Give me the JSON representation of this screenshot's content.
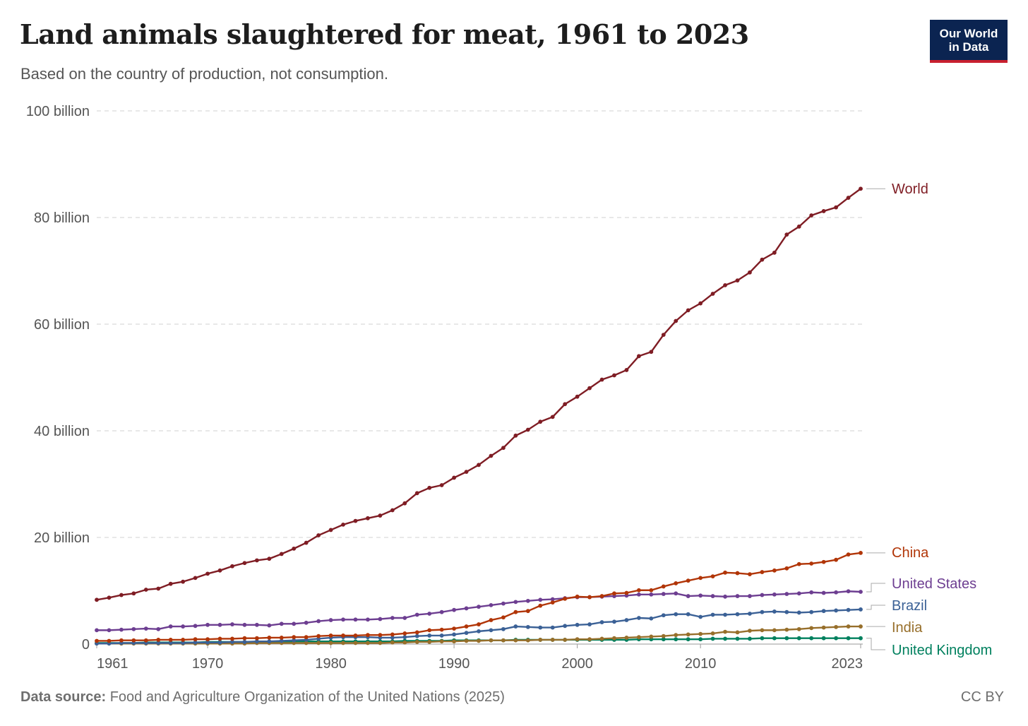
{
  "header": {
    "title": "Land animals slaughtered for meat, 1961 to 2023",
    "subtitle": "Based on the country of production, not consumption.",
    "logo_line1": "Our World",
    "logo_line2": "in Data"
  },
  "footer": {
    "source_label": "Data source:",
    "source_text": "Food and Agriculture Organization of the United Nations (2025)",
    "license": "CC BY"
  },
  "colors": {
    "World": "#7f1d24",
    "China": "#b13507",
    "United States": "#6d3e91",
    "Brazil": "#3b6196",
    "India": "#976f2b",
    "United Kingdom": "#00805e",
    "logo_bg": "#0b2451",
    "logo_accent": "#c8202f"
  },
  "chart_data": {
    "type": "line",
    "title": "Land animals slaughtered for meat, 1961 to 2023",
    "xlabel": "",
    "ylabel": "",
    "xlim": [
      1961,
      2023
    ],
    "ylim": [
      0,
      100
    ],
    "unit": "billion",
    "x_ticks": [
      "1961",
      "1970",
      "1980",
      "1990",
      "2000",
      "2010",
      "2023"
    ],
    "x_tick_values": [
      1961,
      1970,
      1980,
      1990,
      2000,
      2010,
      2023
    ],
    "y_ticks": [
      "0",
      "20 billion",
      "40 billion",
      "60 billion",
      "80 billion",
      "100 billion"
    ],
    "y_tick_values": [
      0,
      20,
      40,
      60,
      80,
      100
    ],
    "grid": "horizontal dashed",
    "legend": "labels at right end of lines",
    "x_start_year": 1961,
    "series": [
      {
        "name": "World",
        "values": [
          8.3,
          8.7,
          9.2,
          9.5,
          10.2,
          10.4,
          11.3,
          11.7,
          12.4,
          13.2,
          13.8,
          14.6,
          15.2,
          15.7,
          16.0,
          16.9,
          17.9,
          19.0,
          20.4,
          21.4,
          22.4,
          23.1,
          23.6,
          24.1,
          25.1,
          26.4,
          28.3,
          29.3,
          29.8,
          31.2,
          32.3,
          33.6,
          35.3,
          36.8,
          39.1,
          40.2,
          41.7,
          42.6,
          45.0,
          46.4,
          48.0,
          49.6,
          50.4,
          51.4,
          54.0,
          54.8,
          58.0,
          60.6,
          62.6,
          63.9,
          65.7,
          67.3,
          68.2,
          69.7,
          72.1,
          73.4,
          76.8,
          78.3,
          80.4,
          81.2,
          81.9,
          83.7,
          85.4
        ]
      },
      {
        "name": "China",
        "values": [
          0.6,
          0.6,
          0.7,
          0.7,
          0.7,
          0.8,
          0.8,
          0.8,
          0.9,
          0.9,
          1.0,
          1.0,
          1.1,
          1.1,
          1.2,
          1.2,
          1.3,
          1.3,
          1.5,
          1.6,
          1.6,
          1.6,
          1.7,
          1.7,
          1.8,
          2.0,
          2.2,
          2.6,
          2.7,
          2.9,
          3.3,
          3.7,
          4.5,
          5.0,
          6.0,
          6.2,
          7.2,
          7.8,
          8.5,
          8.9,
          8.8,
          9.0,
          9.5,
          9.6,
          10.1,
          10.1,
          10.8,
          11.4,
          11.9,
          12.4,
          12.7,
          13.4,
          13.3,
          13.1,
          13.5,
          13.8,
          14.2,
          15.0,
          15.1,
          15.4,
          15.8,
          16.8,
          17.1
        ]
      },
      {
        "name": "United States",
        "values": [
          2.6,
          2.6,
          2.7,
          2.8,
          2.9,
          2.8,
          3.3,
          3.3,
          3.4,
          3.6,
          3.6,
          3.7,
          3.6,
          3.6,
          3.5,
          3.8,
          3.8,
          4.0,
          4.3,
          4.5,
          4.6,
          4.6,
          4.6,
          4.7,
          4.9,
          4.9,
          5.5,
          5.7,
          6.0,
          6.4,
          6.7,
          7.0,
          7.3,
          7.6,
          7.9,
          8.1,
          8.3,
          8.4,
          8.6,
          8.8,
          8.8,
          8.9,
          9.0,
          9.1,
          9.3,
          9.3,
          9.4,
          9.5,
          9.0,
          9.1,
          9.0,
          8.9,
          9.0,
          9.0,
          9.2,
          9.3,
          9.4,
          9.5,
          9.7,
          9.6,
          9.7,
          9.9,
          9.8
        ]
      },
      {
        "name": "Brazil",
        "values": [
          0.1,
          0.1,
          0.2,
          0.2,
          0.2,
          0.2,
          0.2,
          0.2,
          0.3,
          0.3,
          0.3,
          0.4,
          0.4,
          0.5,
          0.5,
          0.6,
          0.7,
          0.8,
          1.0,
          1.2,
          1.3,
          1.3,
          1.3,
          1.2,
          1.2,
          1.3,
          1.5,
          1.6,
          1.6,
          1.8,
          2.1,
          2.4,
          2.6,
          2.8,
          3.3,
          3.2,
          3.1,
          3.1,
          3.4,
          3.6,
          3.7,
          4.1,
          4.2,
          4.5,
          4.9,
          4.8,
          5.4,
          5.6,
          5.6,
          5.1,
          5.5,
          5.5,
          5.6,
          5.7,
          6.0,
          6.1,
          6.0,
          5.9,
          6.0,
          6.2,
          6.3,
          6.4,
          6.5
        ]
      },
      {
        "name": "India",
        "values": [
          0.1,
          0.1,
          0.1,
          0.1,
          0.1,
          0.1,
          0.1,
          0.1,
          0.1,
          0.1,
          0.1,
          0.1,
          0.1,
          0.2,
          0.2,
          0.2,
          0.2,
          0.2,
          0.2,
          0.2,
          0.2,
          0.2,
          0.2,
          0.2,
          0.3,
          0.3,
          0.4,
          0.4,
          0.5,
          0.5,
          0.6,
          0.6,
          0.7,
          0.7,
          0.7,
          0.7,
          0.8,
          0.8,
          0.8,
          0.9,
          0.9,
          1.0,
          1.1,
          1.2,
          1.3,
          1.4,
          1.5,
          1.7,
          1.8,
          1.9,
          2.0,
          2.3,
          2.2,
          2.5,
          2.6,
          2.6,
          2.7,
          2.8,
          3.0,
          3.1,
          3.2,
          3.3,
          3.3
        ]
      },
      {
        "name": "United Kingdom",
        "values": [
          0.2,
          0.2,
          0.2,
          0.2,
          0.3,
          0.3,
          0.3,
          0.3,
          0.3,
          0.4,
          0.4,
          0.4,
          0.4,
          0.4,
          0.4,
          0.4,
          0.5,
          0.5,
          0.5,
          0.5,
          0.5,
          0.5,
          0.5,
          0.5,
          0.5,
          0.6,
          0.6,
          0.6,
          0.6,
          0.7,
          0.7,
          0.7,
          0.7,
          0.7,
          0.8,
          0.8,
          0.8,
          0.8,
          0.8,
          0.8,
          0.8,
          0.8,
          0.8,
          0.8,
          0.9,
          0.9,
          0.9,
          0.9,
          0.9,
          0.9,
          1.0,
          1.0,
          1.0,
          1.0,
          1.1,
          1.1,
          1.1,
          1.1,
          1.1,
          1.1,
          1.1,
          1.1,
          1.1
        ]
      }
    ]
  }
}
